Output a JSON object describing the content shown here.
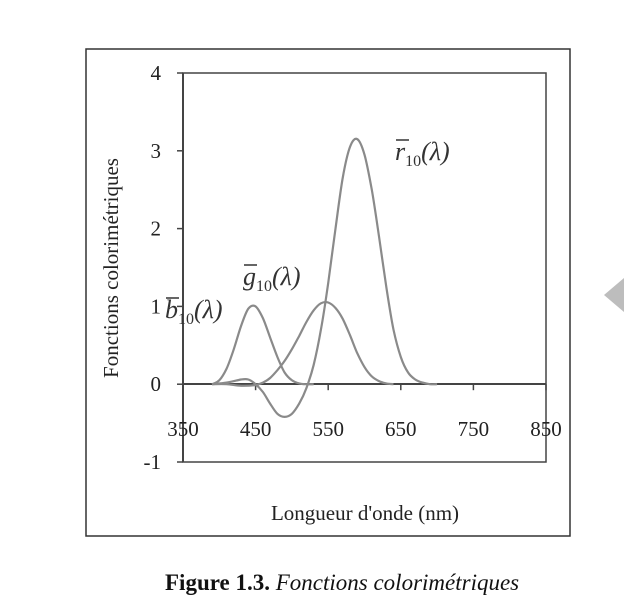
{
  "chart_data": {
    "type": "line",
    "xlabel": "Longueur d'onde (nm)",
    "ylabel": "Fonctions colorimétriques",
    "xlim": [
      350,
      850
    ],
    "ylim": [
      -1,
      4
    ],
    "x_ticks": [
      "350",
      "450",
      "550",
      "650",
      "750",
      "850"
    ],
    "y_ticks": [
      "-1",
      "0",
      "1",
      "2",
      "3",
      "4"
    ],
    "grid": false,
    "series": [
      {
        "name": "b̄₁₀(λ)",
        "label_main": "b",
        "label_sub": "10",
        "label_arg": "(λ)",
        "color": "#8a8a8a",
        "x": [
          390,
          400,
          410,
          420,
          430,
          440,
          450,
          460,
          470,
          480,
          490,
          500,
          510,
          520,
          530
        ],
        "y": [
          0.0,
          0.05,
          0.2,
          0.45,
          0.75,
          0.97,
          1.0,
          0.85,
          0.6,
          0.35,
          0.15,
          0.05,
          0.01,
          0.0,
          0.0
        ]
      },
      {
        "name": "ḡ₁₀(λ)",
        "label_main": "g",
        "label_sub": "10",
        "label_arg": "(λ)",
        "color": "#8a8a8a",
        "x": [
          390,
          410,
          430,
          450,
          460,
          470,
          480,
          490,
          500,
          510,
          520,
          530,
          540,
          550,
          560,
          570,
          580,
          590,
          600,
          610,
          620,
          630,
          640
        ],
        "y": [
          0.0,
          0.0,
          -0.02,
          -0.01,
          0.02,
          0.08,
          0.18,
          0.3,
          0.45,
          0.62,
          0.8,
          0.95,
          1.04,
          1.05,
          0.98,
          0.84,
          0.63,
          0.4,
          0.22,
          0.1,
          0.04,
          0.01,
          0.0
        ]
      },
      {
        "name": "r̄₁₀(λ)",
        "label_main": "r",
        "label_sub": "10",
        "label_arg": "(λ)",
        "color": "#8a8a8a",
        "x": [
          390,
          410,
          430,
          440,
          450,
          460,
          470,
          480,
          490,
          500,
          510,
          520,
          530,
          540,
          550,
          560,
          570,
          580,
          590,
          600,
          610,
          620,
          630,
          640,
          650,
          660,
          670,
          680,
          690,
          700
        ],
        "y": [
          0.0,
          0.02,
          0.06,
          0.06,
          0.0,
          -0.1,
          -0.25,
          -0.38,
          -0.42,
          -0.38,
          -0.25,
          -0.05,
          0.25,
          0.7,
          1.3,
          2.0,
          2.65,
          3.05,
          3.15,
          2.95,
          2.5,
          1.9,
          1.25,
          0.7,
          0.35,
          0.15,
          0.06,
          0.02,
          0.0,
          0.0
        ]
      }
    ]
  },
  "caption": {
    "figure_label": "Figure 1.3.",
    "text": "Fonctions colorimétriques"
  }
}
